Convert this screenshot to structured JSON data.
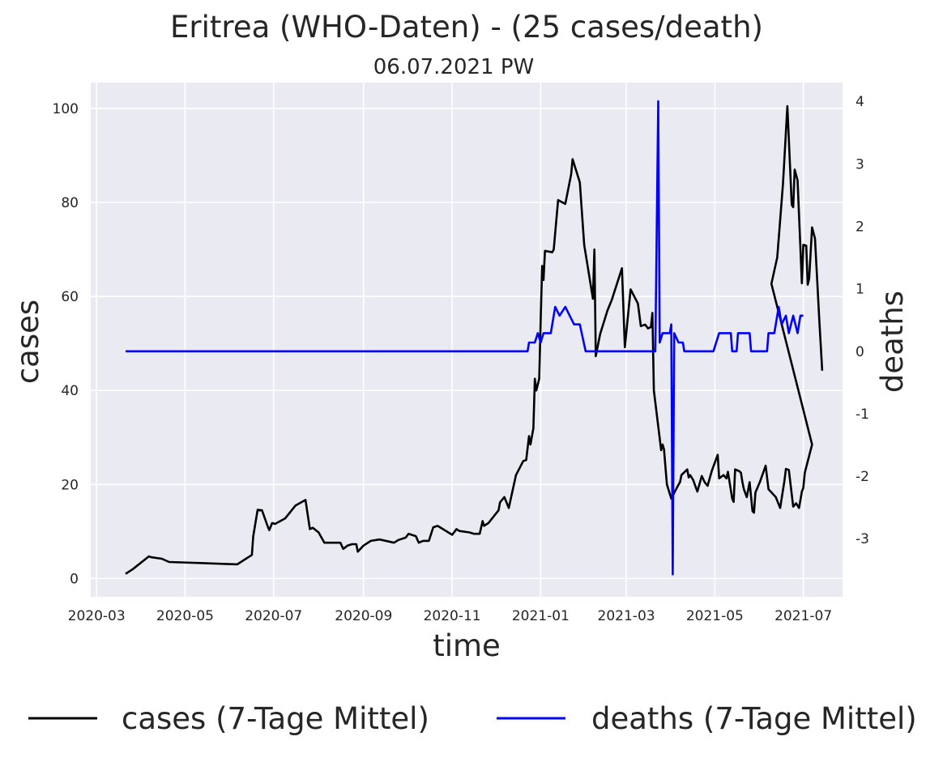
{
  "title": "Eritrea (WHO-Daten) - (25 cases/death)",
  "subtitle": "06.07.2021 PW",
  "xlabel": "time",
  "ylabel_left": "cases",
  "ylabel_right": "deaths",
  "legend": {
    "cases_label": "cases (7-Tage Mittel)",
    "deaths_label": "deaths (7-Tage Mittel)"
  },
  "colors": {
    "cases": "#000000",
    "deaths": "#0000ff",
    "plot_bg": "#eaeaf2",
    "grid": "#ffffff",
    "right_axis_label": "#0000ff"
  },
  "chart_data": {
    "type": "line",
    "x_tick_labels": [
      "2020-03",
      "2020-05",
      "2020-07",
      "2020-09",
      "2020-11",
      "2021-01",
      "2021-03",
      "2021-05",
      "2021-07"
    ],
    "y_left_ticks": [
      0,
      20,
      40,
      60,
      80,
      100
    ],
    "y_right_ticks": [
      -3,
      -2,
      -1,
      0,
      1,
      2,
      3,
      4
    ],
    "y_left_lim": [
      -3.9,
      105.5
    ],
    "y_right_lim": [
      -3.93,
      4.3
    ],
    "x_lim": [
      "2020-02-26",
      "2021-07-28"
    ],
    "grid": true,
    "legend_position": "bottom",
    "series": [
      {
        "name": "cases (7-Tage Mittel)",
        "axis": "left",
        "points": [
          [
            "2020-03-21",
            1
          ],
          [
            "2020-03-26",
            2
          ],
          [
            "2020-04-06",
            4.7
          ],
          [
            "2020-04-08",
            4.5
          ],
          [
            "2020-04-15",
            4.2
          ],
          [
            "2020-04-20",
            3.5
          ],
          [
            "2020-06-06",
            3
          ],
          [
            "2020-06-16",
            5
          ],
          [
            "2020-06-17",
            9
          ],
          [
            "2020-06-20",
            14.6
          ],
          [
            "2020-06-23",
            14.5
          ],
          [
            "2020-06-27",
            11
          ],
          [
            "2020-06-28",
            10.3
          ],
          [
            "2020-06-30",
            11.8
          ],
          [
            "2020-07-02",
            11.6
          ],
          [
            "2020-07-09",
            12.8
          ],
          [
            "2020-07-16",
            15.5
          ],
          [
            "2020-07-23",
            16.7
          ],
          [
            "2020-07-26",
            10.5
          ],
          [
            "2020-07-28",
            10.8
          ],
          [
            "2020-08-01",
            9.8
          ],
          [
            "2020-08-05",
            7.6
          ],
          [
            "2020-08-16",
            7.6
          ],
          [
            "2020-08-18",
            6.3
          ],
          [
            "2020-08-21",
            7
          ],
          [
            "2020-08-24",
            7.3
          ],
          [
            "2020-08-27",
            7.3
          ],
          [
            "2020-08-28",
            5.7
          ],
          [
            "2020-09-01",
            7
          ],
          [
            "2020-09-06",
            8
          ],
          [
            "2020-09-12",
            8.3
          ],
          [
            "2020-09-22",
            7.6
          ],
          [
            "2020-09-25",
            8.2
          ],
          [
            "2020-09-30",
            8.7
          ],
          [
            "2020-10-02",
            9.5
          ],
          [
            "2020-10-07",
            9
          ],
          [
            "2020-10-09",
            7.6
          ],
          [
            "2020-10-12",
            8
          ],
          [
            "2020-10-16",
            8
          ],
          [
            "2020-10-19",
            10.9
          ],
          [
            "2020-10-22",
            11.2
          ],
          [
            "2020-11-01",
            9.3
          ],
          [
            "2020-11-04",
            10.5
          ],
          [
            "2020-11-06",
            10.1
          ],
          [
            "2020-11-13",
            9.8
          ],
          [
            "2020-11-16",
            9.5
          ],
          [
            "2020-11-20",
            9.5
          ],
          [
            "2020-11-22",
            12.2
          ],
          [
            "2020-11-23",
            11.2
          ],
          [
            "2020-11-26",
            11.8
          ],
          [
            "2020-12-03",
            14.5
          ],
          [
            "2020-12-04",
            16.2
          ],
          [
            "2020-12-07",
            17.3
          ],
          [
            "2020-12-10",
            15
          ],
          [
            "2020-12-15",
            22
          ],
          [
            "2020-12-20",
            25
          ],
          [
            "2020-12-22",
            25.2
          ],
          [
            "2020-12-24",
            30.3
          ],
          [
            "2020-12-25",
            28.5
          ],
          [
            "2020-12-27",
            32
          ],
          [
            "2020-12-28",
            42.5
          ],
          [
            "2020-12-29",
            40
          ],
          [
            "2020-12-31",
            42.5
          ],
          [
            "2021-01-01",
            55
          ],
          [
            "2021-01-02",
            66.5
          ],
          [
            "2021-01-03",
            63.5
          ],
          [
            "2021-01-04",
            69.7
          ],
          [
            "2021-01-09",
            69.4
          ],
          [
            "2021-01-10",
            70
          ],
          [
            "2021-01-13",
            80.5
          ],
          [
            "2021-01-18",
            79.7
          ],
          [
            "2021-01-22",
            86
          ],
          [
            "2021-01-23",
            89.2
          ],
          [
            "2021-01-28",
            84.3
          ],
          [
            "2021-01-31",
            71
          ],
          [
            "2021-02-06",
            59.5
          ],
          [
            "2021-02-07",
            70
          ],
          [
            "2021-02-08",
            47.3
          ],
          [
            "2021-02-11",
            52
          ],
          [
            "2021-02-16",
            57
          ],
          [
            "2021-02-19",
            59.3
          ],
          [
            "2021-02-26",
            66
          ],
          [
            "2021-02-28",
            49.2
          ],
          [
            "2021-03-04",
            61.5
          ],
          [
            "2021-03-09",
            58.5
          ],
          [
            "2021-03-11",
            53.7
          ],
          [
            "2021-03-14",
            54
          ],
          [
            "2021-03-16",
            53.2
          ],
          [
            "2021-03-18",
            53.5
          ],
          [
            "2021-03-19",
            56.5
          ],
          [
            "2021-03-20",
            40
          ],
          [
            "2021-03-25",
            27.3
          ],
          [
            "2021-03-26",
            28.5
          ],
          [
            "2021-03-27",
            27.5
          ],
          [
            "2021-03-29",
            20
          ],
          [
            "2021-04-01",
            17
          ],
          [
            "2021-04-06",
            20
          ],
          [
            "2021-04-07",
            20.5
          ],
          [
            "2021-04-08",
            22
          ],
          [
            "2021-04-12",
            23.2
          ],
          [
            "2021-04-13",
            21.5
          ],
          [
            "2021-04-14",
            22
          ],
          [
            "2021-04-16",
            21
          ],
          [
            "2021-04-19",
            18.5
          ],
          [
            "2021-04-22",
            21.8
          ],
          [
            "2021-04-24",
            20.5
          ],
          [
            "2021-04-26",
            19.7
          ],
          [
            "2021-04-29",
            23
          ],
          [
            "2021-05-03",
            26.3
          ],
          [
            "2021-05-04",
            21.3
          ],
          [
            "2021-05-07",
            22
          ],
          [
            "2021-05-09",
            21.3
          ],
          [
            "2021-05-10",
            22.7
          ],
          [
            "2021-05-13",
            17
          ],
          [
            "2021-05-14",
            16.3
          ],
          [
            "2021-05-15",
            23.2
          ],
          [
            "2021-05-18",
            22.8
          ],
          [
            "2021-05-19",
            22.5
          ],
          [
            "2021-05-20",
            20.5
          ],
          [
            "2021-05-21",
            19
          ],
          [
            "2021-05-23",
            17.3
          ],
          [
            "2021-05-25",
            20.5
          ],
          [
            "2021-05-27",
            14.3
          ],
          [
            "2021-05-28",
            14
          ],
          [
            "2021-05-29",
            18.3
          ],
          [
            "2021-06-01",
            20.5
          ],
          [
            "2021-06-05",
            24
          ],
          [
            "2021-06-07",
            19
          ],
          [
            "2021-06-12",
            17.3
          ],
          [
            "2021-06-15",
            15
          ],
          [
            "2021-06-18",
            20.8
          ],
          [
            "2021-06-19",
            23.3
          ],
          [
            "2021-06-21",
            23.1
          ],
          [
            "2021-06-24",
            15.3
          ],
          [
            "2021-06-26",
            16
          ],
          [
            "2021-06-28",
            15
          ],
          [
            "2021-06-30",
            18.5
          ],
          [
            "2021-07-01",
            19.3
          ],
          [
            "2021-07-02",
            22.5
          ],
          [
            "2021-07-07",
            28.5
          ],
          [
            "2021-06-09",
            62.7
          ],
          [
            "2021-06-13",
            68.3
          ],
          [
            "2021-06-17",
            84
          ],
          [
            "2021-06-20",
            100.5
          ],
          [
            "2021-06-23",
            79.5
          ],
          [
            "2021-06-24",
            79
          ],
          [
            "2021-06-25",
            87
          ],
          [
            "2021-06-27",
            84.7
          ],
          [
            "2021-06-30",
            62.8
          ],
          [
            "2021-07-01",
            71
          ],
          [
            "2021-07-03",
            70.8
          ],
          [
            "2021-07-04",
            62.5
          ],
          [
            "2021-07-05",
            63.8
          ],
          [
            "2021-07-07",
            74.7
          ],
          [
            "2021-07-09",
            72.3
          ],
          [
            "2021-07-12",
            55
          ],
          [
            "2021-07-14",
            44.2
          ]
        ]
      },
      {
        "name": "deaths (7-Tage Mittel)",
        "axis": "right",
        "points": [
          [
            "2020-03-21",
            0
          ],
          [
            "2020-12-23",
            0
          ],
          [
            "2020-12-24",
            0.14
          ],
          [
            "2020-12-28",
            0.14
          ],
          [
            "2020-12-30",
            0.29
          ],
          [
            "2021-01-01",
            0.14
          ],
          [
            "2021-01-03",
            0.29
          ],
          [
            "2021-01-08",
            0.29
          ],
          [
            "2021-01-11",
            0.71
          ],
          [
            "2021-01-14",
            0.57
          ],
          [
            "2021-01-18",
            0.71
          ],
          [
            "2021-01-21",
            0.57
          ],
          [
            "2021-01-24",
            0.43
          ],
          [
            "2021-01-28",
            0.43
          ],
          [
            "2021-02-01",
            0
          ],
          [
            "2021-03-21",
            0
          ],
          [
            "2021-03-23",
            4
          ],
          [
            "2021-03-24",
            0.14
          ],
          [
            "2021-03-26",
            0.29
          ],
          [
            "2021-03-31",
            0.29
          ],
          [
            "2021-04-01",
            0.43
          ],
          [
            "2021-04-02",
            -3.57
          ],
          [
            "2021-04-03",
            0.29
          ],
          [
            "2021-04-06",
            0.14
          ],
          [
            "2021-04-09",
            0.14
          ],
          [
            "2021-04-10",
            0
          ],
          [
            "2021-04-30",
            0
          ],
          [
            "2021-05-04",
            0.29
          ],
          [
            "2021-05-12",
            0.29
          ],
          [
            "2021-05-13",
            0
          ],
          [
            "2021-05-16",
            0
          ],
          [
            "2021-05-17",
            0.29
          ],
          [
            "2021-05-25",
            0.29
          ],
          [
            "2021-05-26",
            0
          ],
          [
            "2021-06-06",
            0
          ],
          [
            "2021-06-07",
            0.29
          ],
          [
            "2021-06-11",
            0.29
          ],
          [
            "2021-06-12",
            0.43
          ],
          [
            "2021-06-14",
            0.71
          ],
          [
            "2021-06-16",
            0.43
          ],
          [
            "2021-06-19",
            0.57
          ],
          [
            "2021-06-21",
            0.29
          ],
          [
            "2021-06-24",
            0.57
          ],
          [
            "2021-06-27",
            0.29
          ],
          [
            "2021-06-29",
            0.57
          ],
          [
            "2021-07-01",
            0.57
          ]
        ]
      }
    ]
  }
}
